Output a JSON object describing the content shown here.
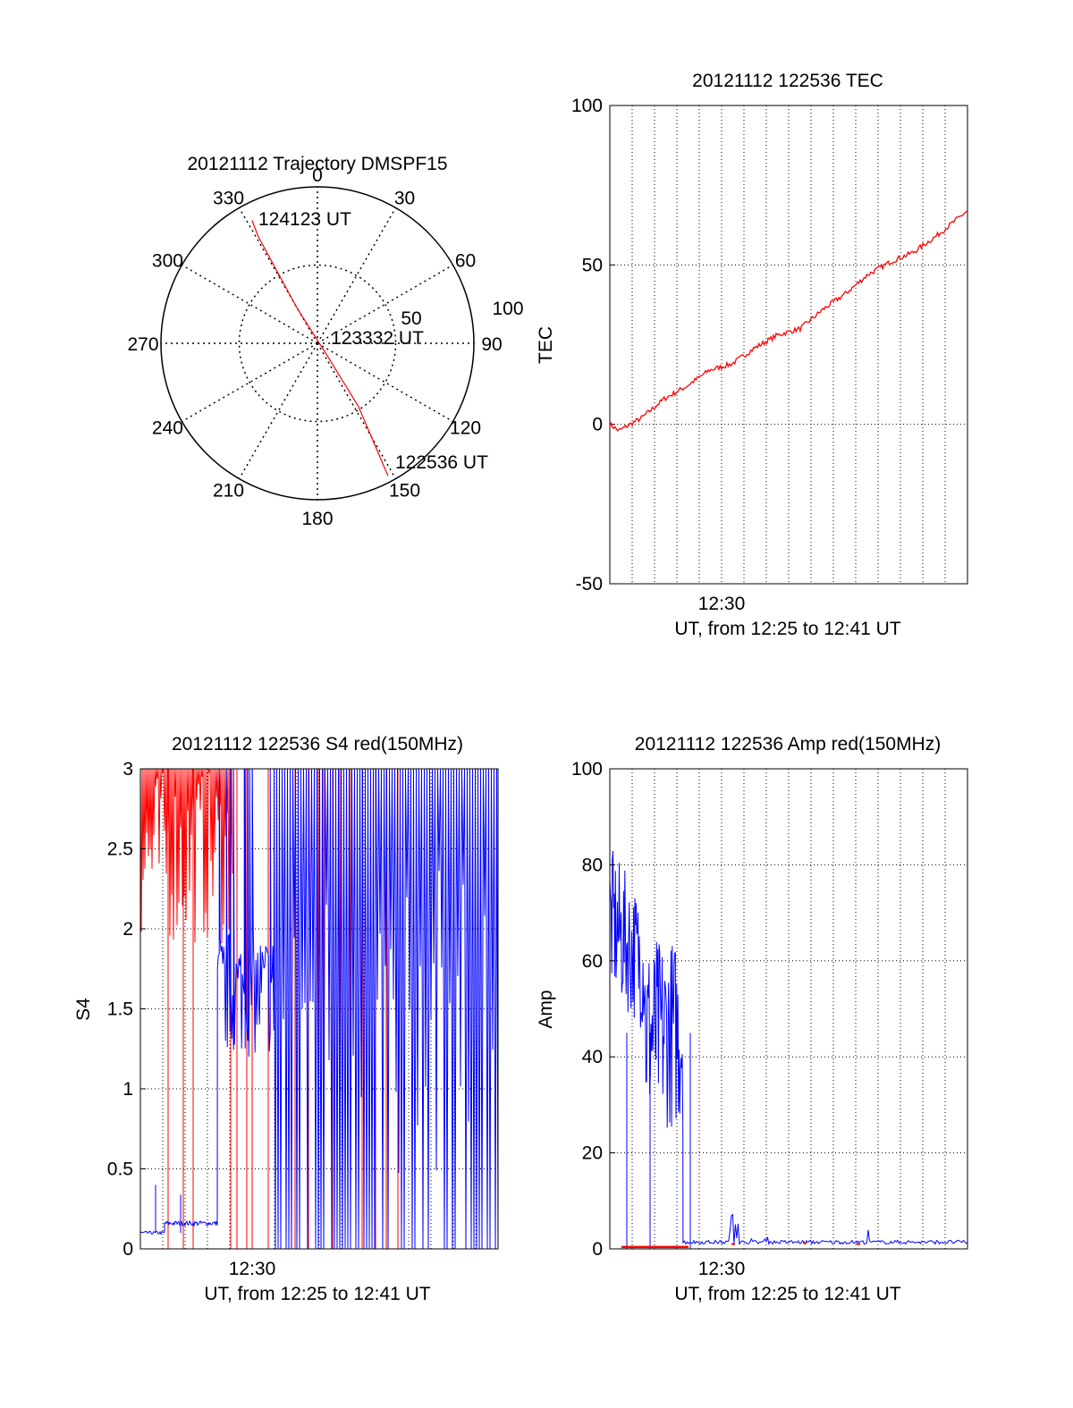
{
  "colors": {
    "red": "#ff0000",
    "blue": "#0000ff",
    "axis": "#000000",
    "grid": "#000000"
  },
  "chart_data": [
    {
      "id": "trajectory",
      "type": "polar",
      "title": "20121112 Trajectory DMSPF15",
      "angle_labels": [
        "0",
        "30",
        "60",
        "90",
        "120",
        "150",
        "180",
        "210",
        "240",
        "270",
        "300",
        "330"
      ],
      "radius_labels": [
        "50",
        "100"
      ],
      "rlim": [
        0,
        100
      ],
      "grid": "dotted",
      "track": {
        "color": "red",
        "points": [
          {
            "az": 152,
            "el_r": 96
          },
          {
            "az": 147,
            "el_r": 48
          },
          {
            "az": 140,
            "el_r": 8
          },
          {
            "az": 330,
            "el_r": 25
          },
          {
            "az": 331,
            "el_r": 78
          },
          {
            "az": 332,
            "el_r": 89
          }
        ],
        "labels": [
          "124123 UT",
          "123332 UT",
          "122536 UT"
        ]
      }
    },
    {
      "id": "tec",
      "type": "line",
      "title": "20121112 122536 TEC",
      "xlabel": "UT, from 12:25 to 12:41 UT",
      "ylabel": "TEC",
      "x_tick_label": "12:30",
      "xlim": [
        "12:25:36",
        "12:41:23"
      ],
      "ylim": [
        -50,
        100
      ],
      "y_ticks": [
        "100",
        "50",
        "0",
        "-50"
      ],
      "grid": true,
      "series": [
        {
          "color": "red",
          "x": [
            "12:25:36",
            "12:26:00",
            "12:27:00",
            "12:28:00",
            "12:29:00",
            "12:30:00",
            "12:31:00",
            "12:32:00",
            "12:33:00",
            "12:34:00",
            "12:35:00",
            "12:36:00",
            "12:37:00",
            "12:38:00",
            "12:39:00",
            "12:40:00",
            "12:41:23"
          ],
          "y": [
            0,
            -2,
            2,
            8,
            12,
            17,
            19,
            24,
            28,
            30,
            36,
            41,
            47,
            51,
            54,
            59,
            67
          ]
        }
      ]
    },
    {
      "id": "s4",
      "type": "line",
      "title": "20121112 122536 S4 red(150MHz)",
      "xlabel": "UT, from 12:25 to 12:41 UT",
      "ylabel": "S4",
      "x_tick_label": "12:30",
      "xlim": [
        "12:25:36",
        "12:41:23"
      ],
      "ylim": [
        0,
        3
      ],
      "y_ticks": [
        "3",
        "2.5",
        "2",
        "1.5",
        "1",
        "0.5",
        "0"
      ],
      "grid": true,
      "series": [
        {
          "color": "red",
          "note": "dense saturated spikes 12:25:36-12:34"
        },
        {
          "color": "blue",
          "segments": [
            {
              "from": "12:25:36",
              "to": "12:26:40",
              "level": 0.1
            },
            {
              "from": "12:26:40",
              "to": "12:29:00",
              "level": 0.16
            },
            {
              "from": "12:29:00",
              "to": "12:31:30",
              "level_range": [
                1.2,
                2.0
              ]
            }
          ]
        }
      ]
    },
    {
      "id": "amp",
      "type": "line",
      "title": "20121112 122536 Amp red(150MHz)",
      "xlabel": "UT, from 12:25 to 12:41 UT",
      "ylabel": "Amp",
      "x_tick_label": "12:30",
      "xlim": [
        "12:25:36",
        "12:41:23"
      ],
      "ylim": [
        0,
        100
      ],
      "y_ticks": [
        "100",
        "80",
        "60",
        "40",
        "20",
        "0"
      ],
      "grid": true,
      "series": [
        {
          "color": "blue",
          "segments": [
            {
              "from": "12:25:36",
              "to": "12:27:10",
              "range": [
                45,
                84
              ]
            },
            {
              "from": "12:27:10",
              "to": "12:28:50",
              "range": [
                25,
                65
              ]
            },
            {
              "from": "12:28:50",
              "to": "12:41:23",
              "level": 1
            }
          ]
        },
        {
          "color": "red",
          "level": 0.3
        }
      ]
    }
  ]
}
